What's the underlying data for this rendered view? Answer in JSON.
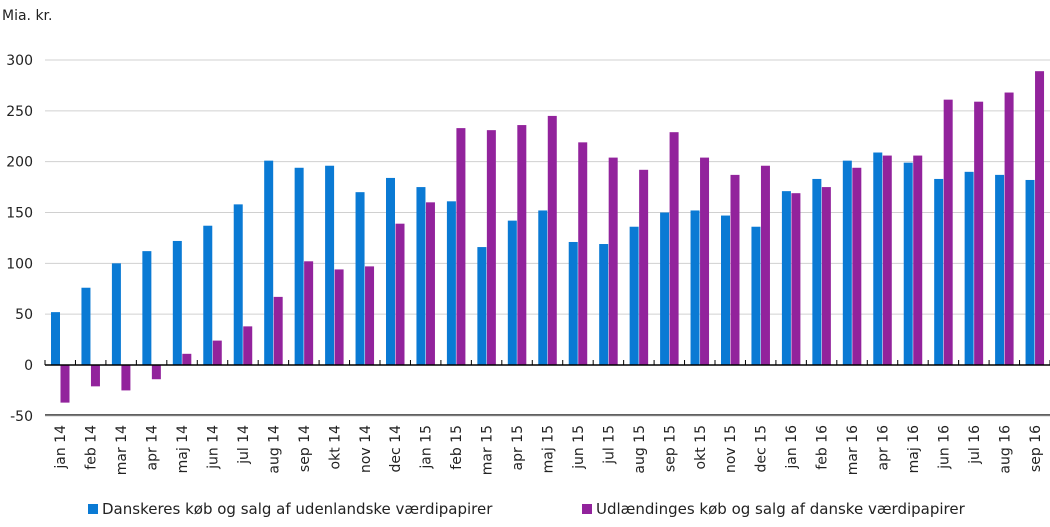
{
  "chart_data": {
    "type": "bar",
    "ylabel": "Mia. kr.",
    "ylim": [
      -50,
      300
    ],
    "yticks": [
      -50,
      0,
      50,
      100,
      150,
      200,
      250,
      300
    ],
    "grid": true,
    "legend_position": "bottom",
    "categories": [
      "jan 14",
      "feb 14",
      "mar 14",
      "apr 14",
      "maj 14",
      "jun 14",
      "jul 14",
      "aug 14",
      "sep 14",
      "okt 14",
      "nov 14",
      "dec 14",
      "jan 15",
      "feb 15",
      "mar 15",
      "apr 15",
      "maj 15",
      "jun 15",
      "jul 15",
      "aug 15",
      "sep 15",
      "okt 15",
      "nov 15",
      "dec 15",
      "jan 16",
      "feb 16",
      "mar 16",
      "apr 16",
      "maj 16",
      "jun 16",
      "jul 16",
      "aug 16",
      "sep 16"
    ],
    "series": [
      {
        "name": "Danskeres køb og salg af udenlandske værdipapirer",
        "color": "#0a7ad4",
        "values": [
          52,
          76,
          100,
          112,
          122,
          137,
          158,
          201,
          194,
          196,
          170,
          184,
          175,
          161,
          116,
          142,
          152,
          121,
          119,
          136,
          150,
          152,
          147,
          136,
          171,
          183,
          201,
          209,
          199,
          183,
          190,
          187,
          182
        ]
      },
      {
        "name": "Udlændinges køb og salg af danske værdipapirer",
        "color": "#92239c",
        "values": [
          -37,
          -21,
          -25,
          -14,
          11,
          24,
          38,
          67,
          102,
          94,
          97,
          139,
          160,
          233,
          231,
          236,
          245,
          219,
          204,
          192,
          229,
          204,
          187,
          196,
          169,
          175,
          194,
          206,
          206,
          261,
          259,
          268,
          289
        ]
      }
    ]
  }
}
